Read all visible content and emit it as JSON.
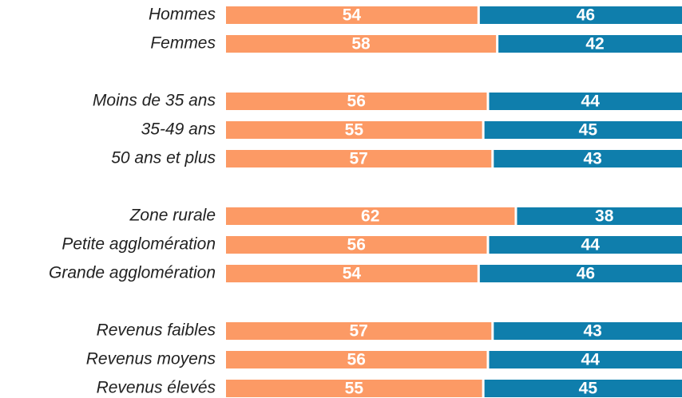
{
  "chart_data": {
    "type": "stacked-bar-horizontal",
    "categories": [
      "Hommes",
      "Femmes",
      null,
      "Moins de 35 ans",
      "35-49 ans",
      "50 ans et plus",
      null,
      "Zone rurale",
      "Petite agglomération",
      "Grande agglomération",
      null,
      "Revenus faibles",
      "Revenus moyens",
      "Revenus élevés"
    ],
    "series": [
      {
        "color": "#FC9A65",
        "values": [
          54,
          58,
          null,
          56,
          55,
          57,
          null,
          62,
          56,
          54,
          null,
          57,
          56,
          55
        ]
      },
      {
        "color": "#0F7EAC",
        "values": [
          46,
          42,
          null,
          44,
          45,
          43,
          null,
          38,
          44,
          46,
          null,
          43,
          44,
          45
        ]
      }
    ],
    "xlim": [
      0,
      100
    ]
  }
}
